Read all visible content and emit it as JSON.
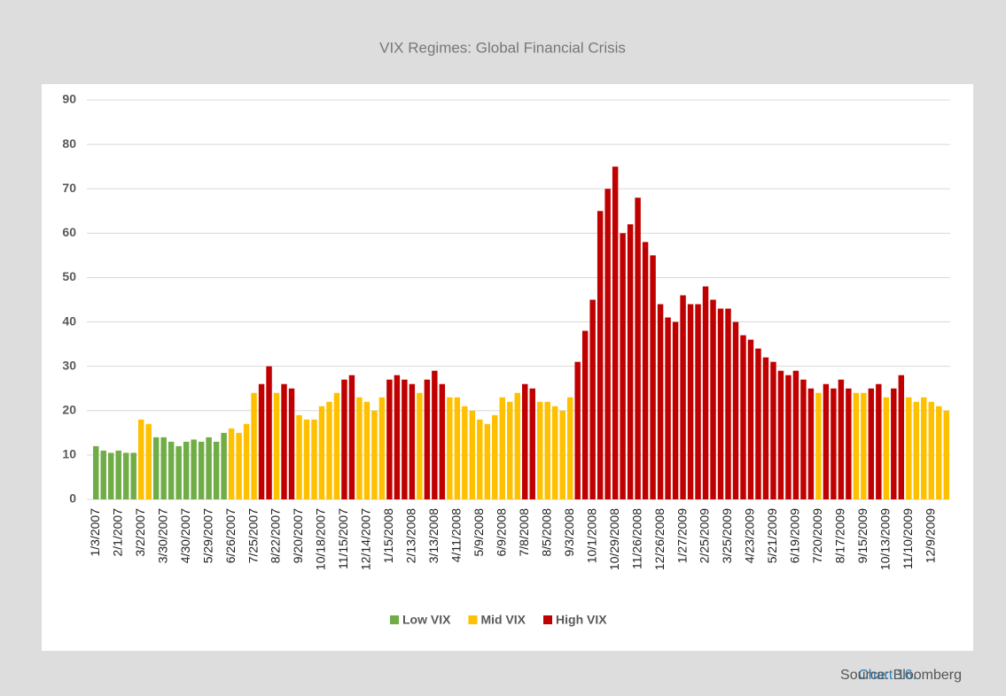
{
  "chart_data": {
    "type": "bar",
    "title": "VIX Regimes: Global Financial Crisis",
    "categories": [
      "1/3/2007",
      null,
      null,
      "2/1/2007",
      null,
      null,
      "3/2/2007",
      null,
      null,
      "3/30/2007",
      null,
      null,
      "4/30/2007",
      null,
      null,
      "5/29/2007",
      null,
      null,
      "6/26/2007",
      null,
      null,
      "7/25/2007",
      null,
      null,
      "8/22/2007",
      null,
      null,
      "9/20/2007",
      null,
      null,
      "10/18/2007",
      null,
      null,
      "11/15/2007",
      null,
      null,
      "12/14/2007",
      null,
      null,
      "1/15/2008",
      null,
      null,
      "2/13/2008",
      null,
      null,
      "3/13/2008",
      null,
      null,
      "4/11/2008",
      null,
      null,
      "5/9/2008",
      null,
      null,
      "6/9/2008",
      null,
      null,
      "7/8/2008",
      null,
      null,
      "8/5/2008",
      null,
      null,
      "9/3/2008",
      null,
      null,
      "10/1/2008",
      null,
      null,
      "10/29/2008",
      null,
      null,
      "11/26/2008",
      null,
      null,
      "12/26/2008",
      null,
      null,
      "1/27/2009",
      null,
      null,
      "2/25/2009",
      null,
      null,
      "3/25/2009",
      null,
      null,
      "4/23/2009",
      null,
      null,
      "5/21/2009",
      null,
      null,
      "6/19/2009",
      null,
      null,
      "7/20/2009",
      null,
      null,
      "8/17/2009",
      null,
      null,
      "9/15/2009",
      null,
      null,
      "10/13/2009",
      null,
      null,
      "11/10/2009",
      null,
      null,
      "12/9/2009",
      null,
      null
    ],
    "series": [
      {
        "name": "Low VIX",
        "color": "#70ad47",
        "values": [
          12,
          11,
          10.5,
          11,
          10.5,
          10.5,
          null,
          null,
          14,
          14,
          13,
          12,
          13,
          13.5,
          13,
          14,
          13,
          15,
          null,
          null,
          null,
          null,
          null,
          null,
          null,
          null,
          null,
          null,
          null,
          null,
          null,
          null,
          null,
          null,
          null,
          null,
          null,
          null,
          null,
          null,
          null,
          null,
          null,
          null,
          null,
          null,
          null,
          null,
          null,
          null,
          null,
          null,
          null,
          null,
          null,
          null,
          null,
          null,
          null,
          null,
          null,
          null,
          null,
          null,
          null,
          null,
          null,
          null,
          null,
          null,
          null,
          null,
          null,
          null,
          null,
          null,
          null,
          null,
          null,
          null,
          null,
          null,
          null,
          null,
          null,
          null,
          null,
          null,
          null,
          null,
          null,
          null,
          null,
          null,
          null,
          null,
          null,
          null,
          null,
          null,
          null,
          null,
          null,
          null,
          null,
          null,
          null,
          null,
          null,
          null,
          null,
          null,
          null,
          null
        ]
      },
      {
        "name": "Mid VIX",
        "color": "#ffc000",
        "values": [
          null,
          null,
          null,
          null,
          null,
          null,
          18,
          17,
          null,
          null,
          null,
          null,
          null,
          null,
          null,
          null,
          null,
          null,
          16,
          15,
          17,
          24,
          null,
          null,
          24,
          null,
          null,
          19,
          18,
          18,
          21,
          22,
          24,
          null,
          null,
          23,
          22,
          20,
          23,
          null,
          null,
          null,
          null,
          24,
          null,
          null,
          null,
          23,
          23,
          21,
          20,
          18,
          17,
          19,
          23,
          22,
          24,
          null,
          null,
          22,
          22,
          21,
          20,
          23,
          null,
          null,
          null,
          null,
          null,
          null,
          null,
          null,
          null,
          null,
          null,
          null,
          null,
          null,
          null,
          null,
          null,
          null,
          null,
          null,
          null,
          null,
          null,
          null,
          null,
          null,
          null,
          null,
          null,
          null,
          null,
          null,
          24,
          null,
          null,
          null,
          null,
          24,
          24,
          null,
          null,
          23,
          null,
          null,
          23,
          22,
          23,
          22,
          21,
          20
        ]
      },
      {
        "name": "High VIX",
        "color": "#c00000",
        "values": [
          null,
          null,
          null,
          null,
          null,
          null,
          null,
          null,
          null,
          null,
          null,
          null,
          null,
          null,
          null,
          null,
          null,
          null,
          null,
          null,
          null,
          null,
          26,
          30,
          null,
          26,
          25,
          null,
          null,
          null,
          null,
          null,
          null,
          27,
          28,
          null,
          null,
          null,
          null,
          27,
          28,
          27,
          26,
          null,
          27,
          29,
          26,
          null,
          null,
          null,
          null,
          null,
          null,
          null,
          null,
          null,
          null,
          26,
          25,
          null,
          null,
          null,
          null,
          null,
          31,
          38,
          45,
          65,
          70,
          75,
          60,
          62,
          68,
          58,
          55,
          44,
          41,
          40,
          46,
          44,
          44,
          48,
          45,
          43,
          43,
          40,
          37,
          36,
          34,
          32,
          31,
          29,
          28,
          29,
          27,
          25,
          null,
          26,
          25,
          27,
          25,
          null,
          null,
          25,
          26,
          null,
          25,
          28,
          null,
          null,
          null,
          null,
          null,
          null
        ]
      }
    ],
    "ylim": [
      0,
      90
    ],
    "yticks": [
      0,
      10,
      20,
      30,
      40,
      50,
      60,
      70,
      80,
      90
    ],
    "grid": true,
    "legend": "bottom"
  },
  "footer": {
    "label": "Chart 16.",
    "source": "Source: Bloomberg"
  }
}
